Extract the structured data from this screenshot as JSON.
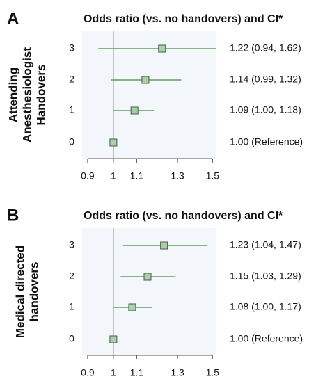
{
  "chart_data": [
    {
      "type": "forest",
      "panel": "A",
      "title": "Odds ratio (vs. no handovers) and CI*",
      "ylabel": [
        "Attending",
        "Anesthesiologist",
        "Handovers"
      ],
      "categories": [
        "3",
        "2",
        "1",
        "0"
      ],
      "values": [
        1.22,
        1.14,
        1.09,
        1.0
      ],
      "lower": [
        0.94,
        0.99,
        1.0,
        null
      ],
      "upper": [
        1.62,
        1.32,
        1.18,
        null
      ],
      "value_labels": [
        "1.22 (0.94, 1.62)",
        "1.14 (0.99, 1.32)",
        "1.09 (1.00, 1.18)",
        "1.00 (Reference)"
      ],
      "xlim": [
        0.88,
        1.52
      ],
      "xticks": [
        0.9,
        1,
        1.1,
        1.3,
        1.5
      ],
      "log_x": true,
      "reference": 1,
      "color": "#5e9e5e",
      "marker_color": "#a9d1a9"
    },
    {
      "type": "forest",
      "panel": "B",
      "title": "Odds ratio (vs. no handovers) and CI*",
      "ylabel": [
        "Medical directed",
        "handovers"
      ],
      "categories": [
        "3",
        "2",
        "1",
        "0"
      ],
      "values": [
        1.23,
        1.15,
        1.08,
        1.0
      ],
      "lower": [
        1.04,
        1.03,
        1.0,
        null
      ],
      "upper": [
        1.47,
        1.29,
        1.17,
        null
      ],
      "value_labels": [
        "1.23 (1.04, 1.47)",
        "1.15 (1.03, 1.29)",
        "1.08 (1.00, 1.17)",
        "1.00 (Reference)"
      ],
      "xlim": [
        0.88,
        1.52
      ],
      "xticks": [
        0.9,
        1,
        1.1,
        1.3,
        1.5
      ],
      "log_x": true,
      "reference": 1,
      "color": "#5e9e5e",
      "marker_color": "#a9d1a9"
    }
  ]
}
